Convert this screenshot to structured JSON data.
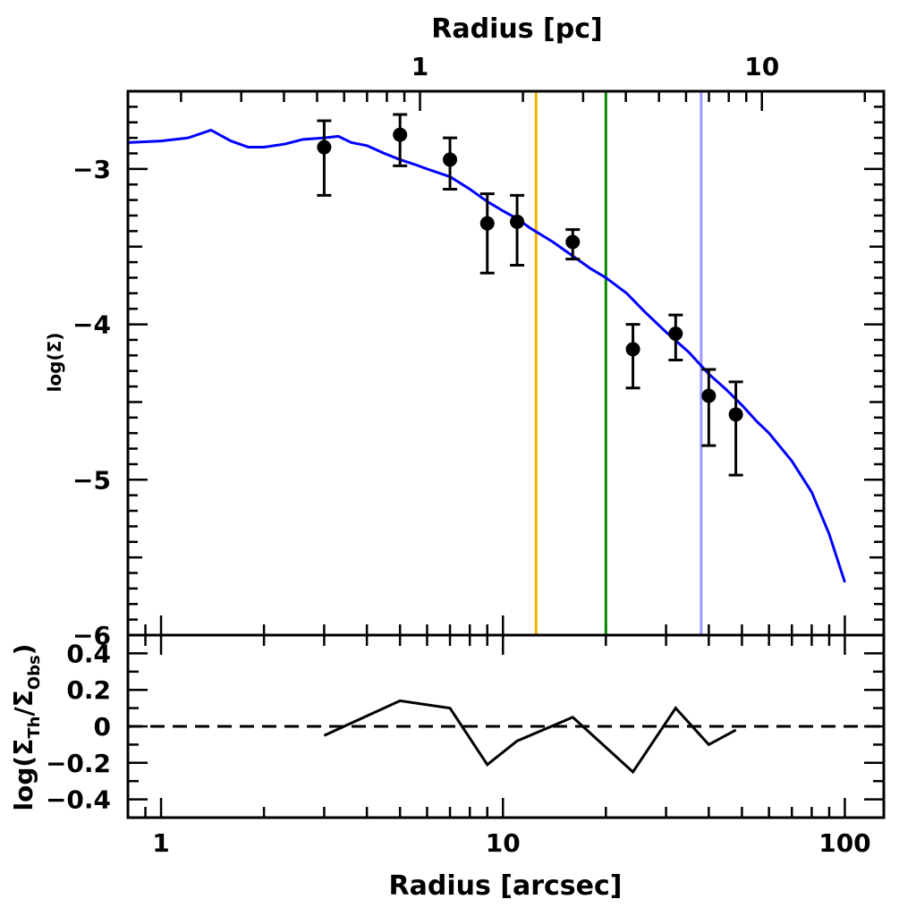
{
  "chart_data": [
    {
      "type": "line",
      "panel": "main",
      "x_scale": "log",
      "xlim": [
        0.8,
        130
      ],
      "ylim": [
        -6,
        -2.5
      ],
      "ylabel": "log(Σ)",
      "top_axis_label": "Radius [pc]",
      "top_axis_ticks": [
        {
          "label": "1",
          "arcsec": 5.72
        },
        {
          "label": "10",
          "arcsec": 57.2
        }
      ],
      "yticks": [
        -3,
        -4,
        -5,
        -6
      ],
      "ytick_labels": [
        "−3",
        "−4",
        "−5",
        "−6"
      ],
      "series": [
        {
          "name": "model",
          "color": "#0000ff",
          "x": [
            0.8,
            1.0,
            1.2,
            1.4,
            1.6,
            1.8,
            2.0,
            2.3,
            2.6,
            3.0,
            3.3,
            3.6,
            4.0,
            4.5,
            5.0,
            5.5,
            6.0,
            7.0,
            8.0,
            9.0,
            10,
            11,
            12,
            14,
            16,
            18,
            20,
            23,
            26,
            30,
            35,
            40,
            45,
            50,
            55,
            60,
            70,
            80,
            90,
            100
          ],
          "y": [
            -2.83,
            -2.82,
            -2.8,
            -2.75,
            -2.82,
            -2.86,
            -2.86,
            -2.84,
            -2.81,
            -2.8,
            -2.79,
            -2.83,
            -2.85,
            -2.9,
            -2.94,
            -2.97,
            -3.0,
            -3.05,
            -3.13,
            -3.21,
            -3.27,
            -3.32,
            -3.38,
            -3.47,
            -3.56,
            -3.64,
            -3.7,
            -3.8,
            -3.92,
            -4.05,
            -4.18,
            -4.32,
            -4.42,
            -4.52,
            -4.62,
            -4.7,
            -4.88,
            -5.08,
            -5.35,
            -5.66
          ]
        },
        {
          "name": "observed",
          "style": "points",
          "color": "#000000",
          "x": [
            3.0,
            5.0,
            7.0,
            9.0,
            11.0,
            16.0,
            24.0,
            32.0,
            40.0,
            48.0
          ],
          "y": [
            -2.86,
            -2.78,
            -2.94,
            -3.35,
            -3.34,
            -3.47,
            -4.16,
            -4.06,
            -4.46,
            -4.58
          ],
          "err_low": [
            0.31,
            0.2,
            0.19,
            0.32,
            0.28,
            0.11,
            0.25,
            0.17,
            0.32,
            0.39
          ],
          "err_high": [
            0.17,
            0.13,
            0.14,
            0.19,
            0.17,
            0.08,
            0.16,
            0.12,
            0.17,
            0.21
          ]
        }
      ],
      "vlines": [
        {
          "x": 12.5,
          "color": "#f5b000"
        },
        {
          "x": 20.0,
          "color": "#008800"
        },
        {
          "x": 38.0,
          "color": "#9999ff"
        }
      ]
    },
    {
      "type": "line",
      "panel": "residual",
      "x_scale": "log",
      "xlim": [
        0.8,
        130
      ],
      "ylim": [
        -0.5,
        0.5
      ],
      "xlabel": "Radius [arcsec]",
      "ylabel": "log(ΣTh/ΣObs)",
      "ylabel_parts": {
        "pre": "log(Σ",
        "sub1": "Th",
        "mid": "/Σ",
        "sub2": "Obs",
        "post": ")"
      },
      "xticks": [
        1,
        10,
        100
      ],
      "xtick_labels": [
        "1",
        "10",
        "100"
      ],
      "yticks": [
        0.4,
        0.2,
        0,
        -0.2,
        -0.4
      ],
      "ytick_labels": [
        "0.4",
        "0.2",
        "0",
        "−0.2",
        "−0.4"
      ],
      "reference_line": {
        "y": 0,
        "style": "dashed"
      },
      "series": [
        {
          "name": "residual",
          "color": "#000000",
          "x": [
            3.0,
            5.0,
            7.0,
            9.0,
            11.0,
            16.0,
            24.0,
            32.0,
            40.0,
            48.0
          ],
          "y": [
            -0.05,
            0.14,
            0.1,
            -0.21,
            -0.08,
            0.05,
            -0.25,
            0.1,
            -0.1,
            -0.02
          ]
        }
      ]
    }
  ]
}
